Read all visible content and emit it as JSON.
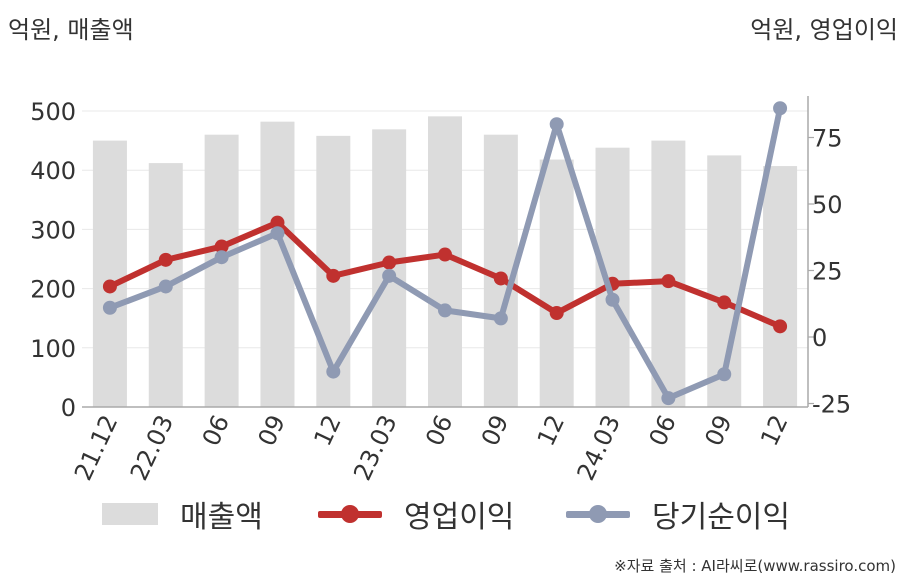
{
  "chart_data": {
    "type": "bar",
    "unit_left": "억원, 매출액",
    "unit_right": "억원, 영업이익",
    "categories": [
      "21.12",
      "22.03",
      "06",
      "09",
      "12",
      "23.03",
      "06",
      "09",
      "12",
      "24.03",
      "06",
      "09",
      "12"
    ],
    "y_left": {
      "ticks": [
        0,
        100,
        200,
        300,
        400,
        500
      ],
      "range": [
        0,
        500
      ]
    },
    "y_right": {
      "ticks": [
        -25,
        0,
        25,
        50,
        75
      ],
      "range": [
        -25,
        75
      ]
    },
    "grid": true,
    "legend_position": "bottom",
    "series": [
      {
        "name": "매출액",
        "type": "bar",
        "axis": "left",
        "color": "#dcdcdc",
        "values": [
          450,
          412,
          460,
          482,
          458,
          469,
          491,
          460,
          418,
          438,
          450,
          425,
          407
        ]
      },
      {
        "name": "영업이익",
        "type": "line",
        "axis": "right",
        "color": "#c0312f",
        "values": [
          19,
          29,
          34,
          43,
          23,
          28,
          31,
          22,
          9,
          20,
          21,
          13,
          4
        ]
      },
      {
        "name": "당기순이익",
        "type": "line",
        "axis": "right",
        "color": "#8f9ab3",
        "values": [
          11,
          19,
          30,
          39,
          -13,
          23,
          10,
          7,
          80,
          14,
          -23,
          -14,
          86
        ]
      }
    ],
    "source": "※자료 출처 : AI라씨로(www.rassiro.com)"
  }
}
